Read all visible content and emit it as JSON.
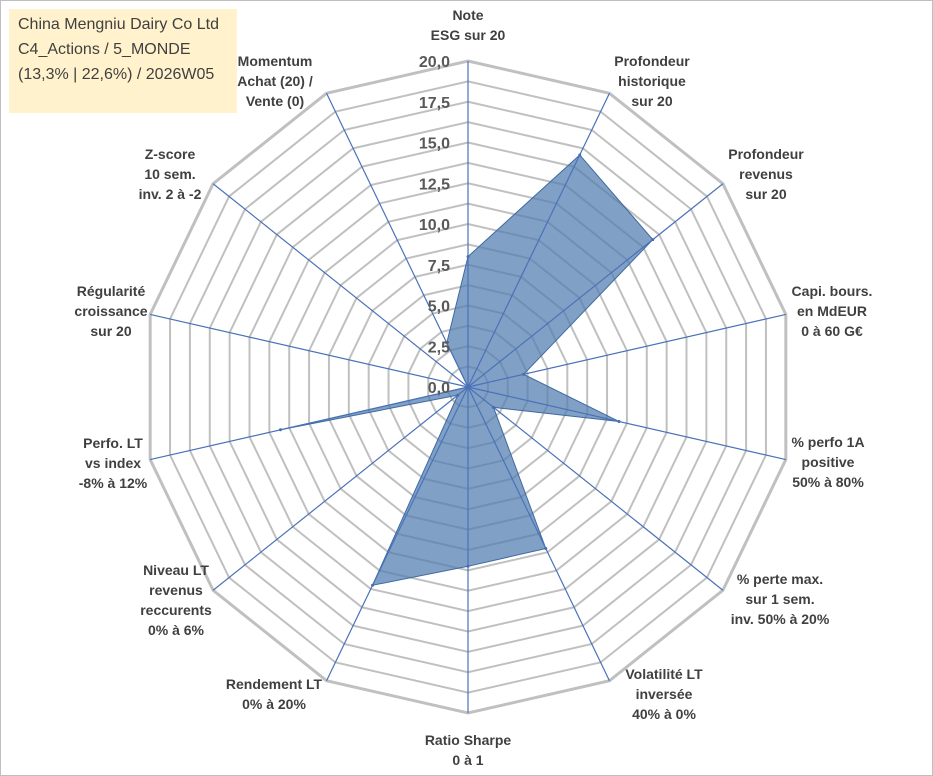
{
  "chart_data": {
    "type": "radar",
    "title_lines": [
      "China Mengniu Dairy Co Ltd",
      "C4_Actions / 5_MONDE",
      "(13,3% | 22,6%) / 2026W05"
    ],
    "axes": [
      [
        "Note",
        "ESG sur 20"
      ],
      [
        "Profondeur",
        "historique",
        "sur 20"
      ],
      [
        "Profondeur",
        "revenus",
        "sur 20"
      ],
      [
        "Capi. bours.",
        "en MdEUR",
        "0 à 60 G€"
      ],
      [
        "% perfo 1A",
        "positive",
        "50% à 80%"
      ],
      [
        "% perte max.",
        "sur 1 sem.",
        "inv. 50% à 20%"
      ],
      [
        "Volatilité LT",
        "inversée",
        "40% à 0%"
      ],
      [
        "Ratio Sharpe",
        "0 à 1"
      ],
      [
        "Rendement LT",
        "0% à 20%"
      ],
      [
        "Niveau LT",
        "revenus",
        "reccurents",
        "0% à 6%"
      ],
      [
        "Perfo. LT",
        "vs index",
        "-8% à 12%"
      ],
      [
        "Régularité",
        "croissance",
        "sur 20"
      ],
      [
        "Z-score",
        "10 sem.",
        "inv. 2 à -2"
      ],
      [
        "Momentum",
        "Achat (20) /",
        "Vente (0)"
      ]
    ],
    "series": [
      {
        "values": [
          8.0,
          15.8,
          14.5,
          3.5,
          9.5,
          2.0,
          11.0,
          11.0,
          13.5,
          0.8,
          11.8,
          0.0,
          0.0,
          3.0
        ]
      }
    ],
    "rmin": 0,
    "rmax": 20,
    "ticks": [
      "0,0",
      "2,5",
      "5,0",
      "7,5",
      "10,0",
      "12,5",
      "15,0",
      "17,5",
      "20,0"
    ],
    "grid": true,
    "colors": {
      "fill": "#4f7cb0",
      "fill_opacity": 0.72,
      "grid": "#c0c0c0",
      "spoke": "#4a72b8",
      "title_bg": "#fff2cc"
    }
  }
}
